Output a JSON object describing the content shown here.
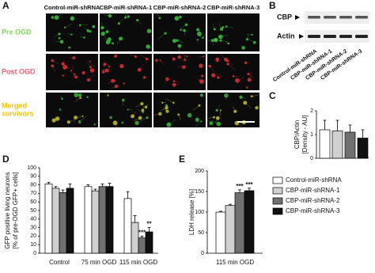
{
  "panels": {
    "labels": [
      "A",
      "B",
      "C",
      "D",
      "E"
    ],
    "micrographs": {
      "columns": [
        "Control-miR-shRNA",
        "CBP-miR-shRNA-1",
        "CBP-miR-shRNA-2",
        "CBP-miR-shRNA-3"
      ],
      "rows": [
        {
          "lines": [
            "Pre OGD"
          ],
          "color": "#7ed957"
        },
        {
          "lines": [
            "Post OGD"
          ],
          "color": "#ff5a6e"
        },
        {
          "lines": [
            "Merged",
            "survivors"
          ],
          "color": "#f5c400"
        }
      ]
    },
    "blot": {
      "bands": [
        "CBP",
        "Actin"
      ],
      "lanes": [
        "Control-miR-shRNA",
        "CBP-miR-shRNA-1",
        "CBP-miR-shRNA-2",
        "CBP-miR-shRNA-3"
      ]
    }
  },
  "chart_data": [
    {
      "type": "bar",
      "ylabel": [
        "CBP/Actin",
        "[Density - AU]"
      ],
      "values": [
        1.2,
        1.15,
        1.1,
        0.85
      ],
      "errors": [
        0.4,
        0.45,
        0.3,
        0.35
      ],
      "ylim": [
        0,
        2
      ],
      "yticks": [
        0,
        1,
        2
      ]
    },
    {
      "type": "grouped-bar",
      "ylabel": [
        "GFP positive living neurons",
        "[% of pre-OGD GFP+ cells]"
      ],
      "categories": [
        "Control",
        "75 min OGD",
        "115 min OGD"
      ],
      "series": [
        {
          "name": "Control-miR-shRNA",
          "color": "#ffffff",
          "values": [
            81,
            78,
            64
          ],
          "errors": [
            2,
            2,
            8
          ],
          "significance": [
            null,
            null,
            null
          ]
        },
        {
          "name": "CBP-miR-shRNA-1",
          "color": "#d0d0d0",
          "values": [
            76,
            73,
            36
          ],
          "errors": [
            2,
            2,
            8
          ],
          "significance": [
            null,
            null,
            null
          ]
        },
        {
          "name": "CBP-miR-shRNA-2",
          "color": "#707070",
          "values": [
            71,
            78,
            18
          ],
          "errors": [
            3,
            3,
            2
          ],
          "significance": [
            null,
            null,
            "***"
          ]
        },
        {
          "name": "CBP-miR-shRNA-3",
          "color": "#101010",
          "values": [
            76,
            78,
            25
          ],
          "errors": [
            5,
            4,
            5
          ],
          "significance": [
            null,
            null,
            "**"
          ]
        }
      ],
      "ylim": [
        0,
        100
      ],
      "yticks": [
        0,
        10,
        20,
        30,
        40,
        50,
        60,
        70,
        80,
        90,
        100
      ],
      "legend": "right"
    },
    {
      "type": "grouped-bar",
      "ylabel": [
        "LDH release [%]"
      ],
      "categories": [
        "115 min OGD"
      ],
      "series": [
        {
          "values": [
            100
          ],
          "errors": [
            2
          ],
          "significance": [
            null
          ]
        },
        {
          "values": [
            116
          ],
          "errors": [
            3
          ],
          "significance": [
            null
          ]
        },
        {
          "values": [
            147
          ],
          "errors": [
            7
          ],
          "significance": [
            "***"
          ]
        },
        {
          "values": [
            152
          ],
          "errors": [
            6
          ],
          "significance": [
            "***"
          ]
        }
      ],
      "ylim": [
        0,
        200
      ],
      "yticks": [
        0,
        50,
        100,
        150,
        200
      ]
    }
  ]
}
